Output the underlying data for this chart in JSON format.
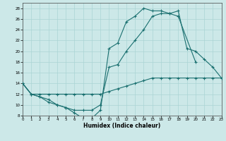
{
  "xlabel": "Humidex (Indice chaleur)",
  "xlim": [
    0,
    23
  ],
  "ylim": [
    8,
    29
  ],
  "x_ticks": [
    0,
    1,
    2,
    3,
    4,
    5,
    6,
    7,
    8,
    9,
    10,
    11,
    12,
    13,
    14,
    15,
    16,
    17,
    18,
    19,
    20,
    21,
    22,
    23
  ],
  "y_ticks": [
    8,
    10,
    12,
    14,
    16,
    18,
    20,
    22,
    24,
    26,
    28
  ],
  "bg_color": "#cce8e8",
  "line_color": "#1a7070",
  "grid_color": "#aad4d4",
  "line1_x": [
    0,
    1,
    2,
    3,
    4,
    5,
    6,
    7,
    8,
    9,
    10,
    11,
    12,
    13,
    14,
    15,
    16,
    17,
    18,
    20
  ],
  "line1_y": [
    14,
    12,
    11.5,
    10.5,
    10,
    9.5,
    8.5,
    7.5,
    7.5,
    9.0,
    20.5,
    21.5,
    25.5,
    26.5,
    28,
    27.5,
    27.5,
    27,
    26.5,
    18
  ],
  "line2_x": [
    0,
    1,
    2,
    3,
    4,
    5,
    6,
    7,
    8,
    9,
    10,
    11,
    12,
    13,
    14,
    15,
    16,
    17,
    18,
    19,
    20,
    21,
    22,
    23
  ],
  "line2_y": [
    14,
    12,
    11.5,
    11,
    10,
    9.5,
    9,
    9,
    9,
    10,
    17,
    17.5,
    20,
    22,
    24,
    26.5,
    27,
    27,
    27.5,
    20.5,
    20,
    18.5,
    17,
    15
  ],
  "line3_x": [
    0,
    1,
    2,
    3,
    4,
    5,
    6,
    7,
    8,
    9,
    10,
    11,
    12,
    13,
    14,
    15,
    16,
    17,
    18,
    19,
    20,
    21,
    22,
    23
  ],
  "line3_y": [
    14,
    12,
    12,
    12,
    12,
    12,
    12,
    12,
    12,
    12,
    12.5,
    13,
    13.5,
    14,
    14.5,
    15,
    15,
    15,
    15,
    15,
    15,
    15,
    15,
    15
  ]
}
